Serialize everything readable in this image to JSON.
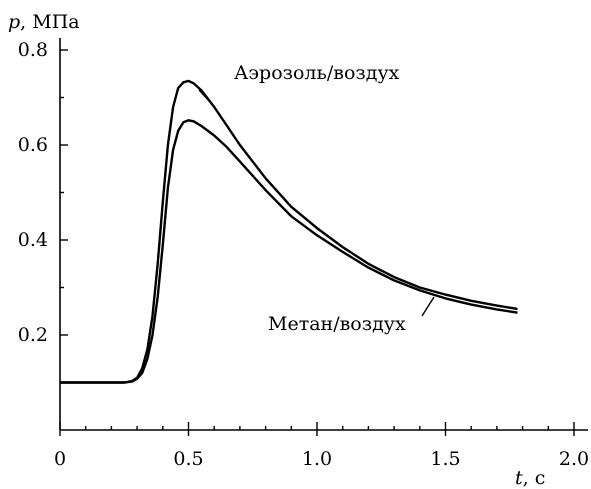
{
  "chart_data": {
    "type": "line",
    "y_axis_title": {
      "var": "p",
      "unit": ", МПа"
    },
    "x_axis_title": {
      "var": "t",
      "unit": ", с"
    },
    "xlim": [
      0,
      2.0
    ],
    "ylim": [
      0.0,
      0.8
    ],
    "x_ticks": [
      {
        "value": 0,
        "label": "0"
      },
      {
        "value": 0.5,
        "label": "0.5"
      },
      {
        "value": 1.0,
        "label": "1.0"
      },
      {
        "value": 1.5,
        "label": "1.5"
      },
      {
        "value": 2.0,
        "label": "2.0"
      }
    ],
    "y_ticks": [
      {
        "value": 0.2,
        "label": "0.2"
      },
      {
        "value": 0.4,
        "label": "0.4"
      },
      {
        "value": 0.6,
        "label": "0.6"
      },
      {
        "value": 0.8,
        "label": "0.8"
      }
    ],
    "grid": false,
    "series": [
      {
        "name": "Аэрозоль/воздух",
        "x": [
          0.0,
          0.25,
          0.28,
          0.3,
          0.32,
          0.34,
          0.36,
          0.38,
          0.4,
          0.42,
          0.44,
          0.46,
          0.48,
          0.5,
          0.52,
          0.55,
          0.6,
          0.65,
          0.7,
          0.8,
          0.9,
          1.0,
          1.1,
          1.2,
          1.3,
          1.4,
          1.5,
          1.6,
          1.7,
          1.78
        ],
        "y": [
          0.1,
          0.1,
          0.103,
          0.11,
          0.13,
          0.17,
          0.24,
          0.35,
          0.48,
          0.6,
          0.68,
          0.72,
          0.732,
          0.735,
          0.73,
          0.715,
          0.68,
          0.64,
          0.6,
          0.53,
          0.47,
          0.425,
          0.385,
          0.35,
          0.322,
          0.3,
          0.285,
          0.272,
          0.262,
          0.255
        ]
      },
      {
        "name": "Метан/воздух",
        "x": [
          0.0,
          0.25,
          0.28,
          0.3,
          0.32,
          0.34,
          0.36,
          0.38,
          0.4,
          0.42,
          0.44,
          0.46,
          0.48,
          0.5,
          0.52,
          0.55,
          0.6,
          0.65,
          0.7,
          0.8,
          0.9,
          1.0,
          1.1,
          1.2,
          1.3,
          1.4,
          1.5,
          1.6,
          1.7,
          1.78
        ],
        "y": [
          0.1,
          0.1,
          0.102,
          0.108,
          0.12,
          0.15,
          0.2,
          0.28,
          0.39,
          0.51,
          0.59,
          0.63,
          0.648,
          0.652,
          0.65,
          0.64,
          0.62,
          0.595,
          0.565,
          0.505,
          0.45,
          0.41,
          0.375,
          0.342,
          0.315,
          0.294,
          0.277,
          0.264,
          0.254,
          0.247
        ]
      }
    ]
  }
}
